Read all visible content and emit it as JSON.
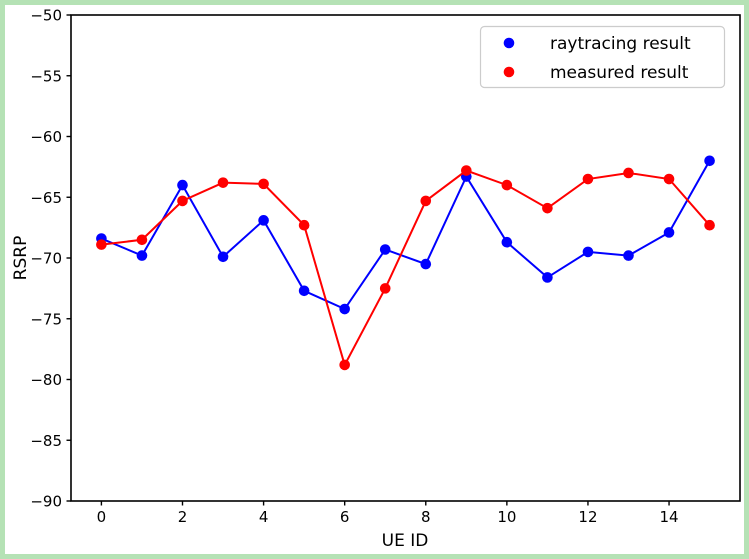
{
  "figure": {
    "frame_border_color": "#b5e2b5",
    "background_color": "#ffffff",
    "title": ""
  },
  "chart_data": {
    "type": "line",
    "x": [
      0,
      1,
      2,
      3,
      4,
      5,
      6,
      7,
      8,
      9,
      10,
      11,
      12,
      13,
      14,
      15
    ],
    "series": [
      {
        "name": "raytracing result",
        "color": "#0000ff",
        "marker": "circle",
        "values": [
          -68.4,
          -69.8,
          -64.0,
          -69.9,
          -66.9,
          -72.7,
          -74.2,
          -69.3,
          -70.5,
          -63.3,
          -68.7,
          -71.6,
          -69.5,
          -69.8,
          -67.9,
          -62.0
        ]
      },
      {
        "name": "measured result",
        "color": "#ff0000",
        "marker": "circle",
        "values": [
          -68.9,
          -68.5,
          -65.3,
          -63.8,
          -63.9,
          -67.3,
          -78.8,
          -72.5,
          -65.3,
          -62.8,
          -64.0,
          -65.9,
          -63.5,
          -63.0,
          -63.5,
          -67.3
        ]
      }
    ],
    "title": "",
    "xlabel": "UE ID",
    "ylabel": "RSRP",
    "xlim": [
      -0.75,
      15.75
    ],
    "ylim": [
      -90,
      -50
    ],
    "xticks": [
      0,
      2,
      4,
      6,
      8,
      10,
      12,
      14
    ],
    "yticks": [
      -50,
      -55,
      -60,
      -65,
      -70,
      -75,
      -80,
      -85,
      -90
    ],
    "grid": false,
    "legend_position": "upper right",
    "legend_edge_color": "#cccccc",
    "axis_color": "#000000"
  }
}
